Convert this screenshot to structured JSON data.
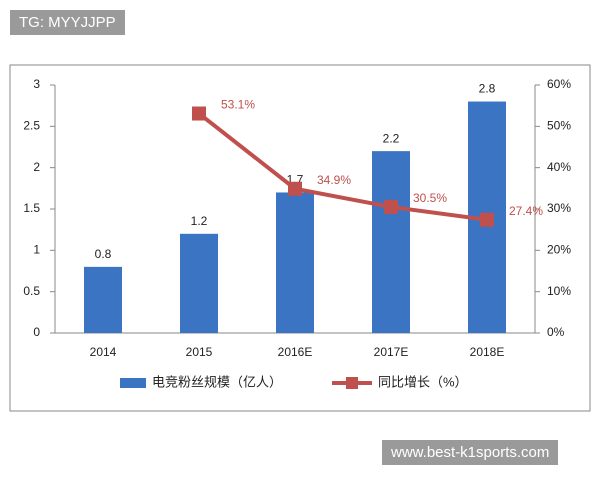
{
  "chart_data": {
    "type": "bar",
    "categories": [
      "2014",
      "2015",
      "2016E",
      "2017E",
      "2018E"
    ],
    "series": [
      {
        "name": "电竞粉丝规模（亿人）",
        "type": "bar",
        "color": "#3b74c2",
        "values": [
          0.8,
          1.2,
          1.7,
          2.2,
          2.8
        ]
      },
      {
        "name": "同比增长（%）",
        "type": "line",
        "axis": "y2",
        "color": "#c0504d",
        "values": [
          null,
          53.1,
          34.9,
          30.5,
          27.4
        ],
        "value_labels": [
          null,
          "53.1%",
          "34.9%",
          "30.5%",
          "27.4%"
        ]
      }
    ],
    "ylim": [
      0,
      3
    ],
    "yticks": [
      0,
      0.5,
      1,
      1.5,
      2,
      2.5,
      3
    ],
    "y2lim": [
      0,
      60
    ],
    "y2ticks": [
      {
        "value": 0,
        "label": "0%"
      },
      {
        "value": 10,
        "label": "10%"
      },
      {
        "value": 20,
        "label": "20%"
      },
      {
        "value": 30,
        "label": "30%"
      },
      {
        "value": 40,
        "label": "40%"
      },
      {
        "value": 50,
        "label": "50%"
      },
      {
        "value": 60,
        "label": "60%"
      }
    ],
    "legend": "bottom",
    "grid": false
  },
  "overlays": {
    "top_left": "TG: MYYJJPP",
    "bottom_right": "www.best-k1sports.com"
  }
}
